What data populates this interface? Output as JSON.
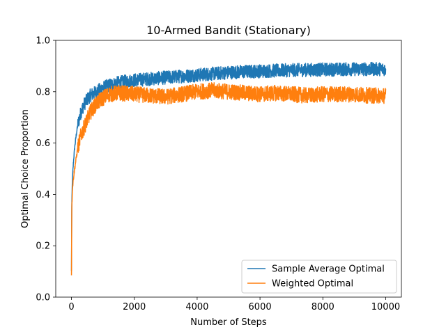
{
  "chart_data": {
    "type": "line",
    "title": "10-Armed Bandit (Stationary)",
    "xlabel": "Number of Steps",
    "ylabel": "Optimal Choice Proportion",
    "xlim": [
      -500,
      10500
    ],
    "ylim": [
      0.0,
      1.0
    ],
    "xticks": [
      0,
      2000,
      4000,
      6000,
      8000,
      10000
    ],
    "xtick_labels": [
      "0",
      "2000",
      "4000",
      "6000",
      "8000",
      "10000"
    ],
    "yticks": [
      0.0,
      0.2,
      0.4,
      0.6,
      0.8,
      1.0
    ],
    "ytick_labels": [
      "0.0",
      "0.2",
      "0.4",
      "0.6",
      "0.8",
      "1.0"
    ],
    "grid": false,
    "legend_position": "lower-right",
    "series": [
      {
        "name": "Sample Average Optimal",
        "color": "#1f77b4",
        "noise": 0.012,
        "x": [
          0,
          10,
          30,
          60,
          100,
          150,
          200,
          300,
          400,
          500,
          600,
          800,
          1000,
          1200,
          1500,
          2000,
          2500,
          3000,
          3500,
          4000,
          4500,
          5000,
          5500,
          6000,
          6500,
          7000,
          7500,
          8000,
          8500,
          9000,
          9500,
          10000
        ],
        "y": [
          0.1,
          0.35,
          0.46,
          0.52,
          0.58,
          0.63,
          0.67,
          0.72,
          0.75,
          0.77,
          0.785,
          0.8,
          0.815,
          0.825,
          0.835,
          0.845,
          0.85,
          0.855,
          0.86,
          0.865,
          0.87,
          0.875,
          0.878,
          0.88,
          0.882,
          0.884,
          0.885,
          0.886,
          0.887,
          0.888,
          0.888,
          0.888
        ]
      },
      {
        "name": "Weighted Optimal",
        "color": "#ff7f0e",
        "noise": 0.014,
        "x": [
          0,
          10,
          30,
          60,
          100,
          150,
          200,
          300,
          400,
          500,
          600,
          800,
          1000,
          1200,
          1500,
          2000,
          2500,
          3000,
          3500,
          4000,
          4500,
          5000,
          5500,
          6000,
          6500,
          7000,
          7500,
          8000,
          8500,
          9000,
          9500,
          10000
        ],
        "y": [
          0.09,
          0.34,
          0.42,
          0.46,
          0.5,
          0.54,
          0.58,
          0.63,
          0.66,
          0.69,
          0.72,
          0.755,
          0.775,
          0.79,
          0.795,
          0.79,
          0.785,
          0.78,
          0.79,
          0.8,
          0.805,
          0.8,
          0.795,
          0.79,
          0.795,
          0.79,
          0.785,
          0.79,
          0.79,
          0.79,
          0.785,
          0.785
        ]
      }
    ]
  }
}
